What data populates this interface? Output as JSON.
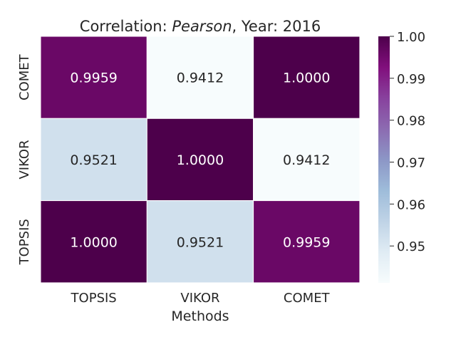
{
  "chart_data": {
    "type": "heatmap",
    "title": {
      "prefix": "Correlation: ",
      "method": "Pearson",
      "suffix": ", Year: 2016"
    },
    "xlabel": "Methods",
    "ylabel": "",
    "x_categories": [
      "TOPSIS",
      "VIKOR",
      "COMET"
    ],
    "y_categories": [
      "COMET",
      "VIKOR",
      "TOPSIS"
    ],
    "values": [
      [
        0.9959,
        0.9412,
        1.0
      ],
      [
        0.9521,
        1.0,
        0.9412
      ],
      [
        1.0,
        0.9521,
        0.9959
      ]
    ],
    "value_labels": [
      [
        "0.9959",
        "0.9412",
        "1.0000"
      ],
      [
        "0.9521",
        "1.0000",
        "0.9412"
      ],
      [
        "1.0000",
        "0.9521",
        "0.9959"
      ]
    ],
    "colorbar": {
      "vmin": 0.9412,
      "vmax": 1.0,
      "ticks": [
        0.95,
        0.96,
        0.97,
        0.98,
        0.99,
        1.0
      ],
      "tick_labels": [
        "0.95",
        "0.96",
        "0.97",
        "0.98",
        "0.99",
        "1.00"
      ],
      "colormap": "BuPu",
      "colormap_stops": [
        "#f7fcfd",
        "#e0ecf4",
        "#bfd3e6",
        "#9ebcda",
        "#8c96c6",
        "#8c6bb1",
        "#88419d",
        "#810f7c",
        "#4d004b"
      ]
    },
    "cell_gridlines": true
  }
}
